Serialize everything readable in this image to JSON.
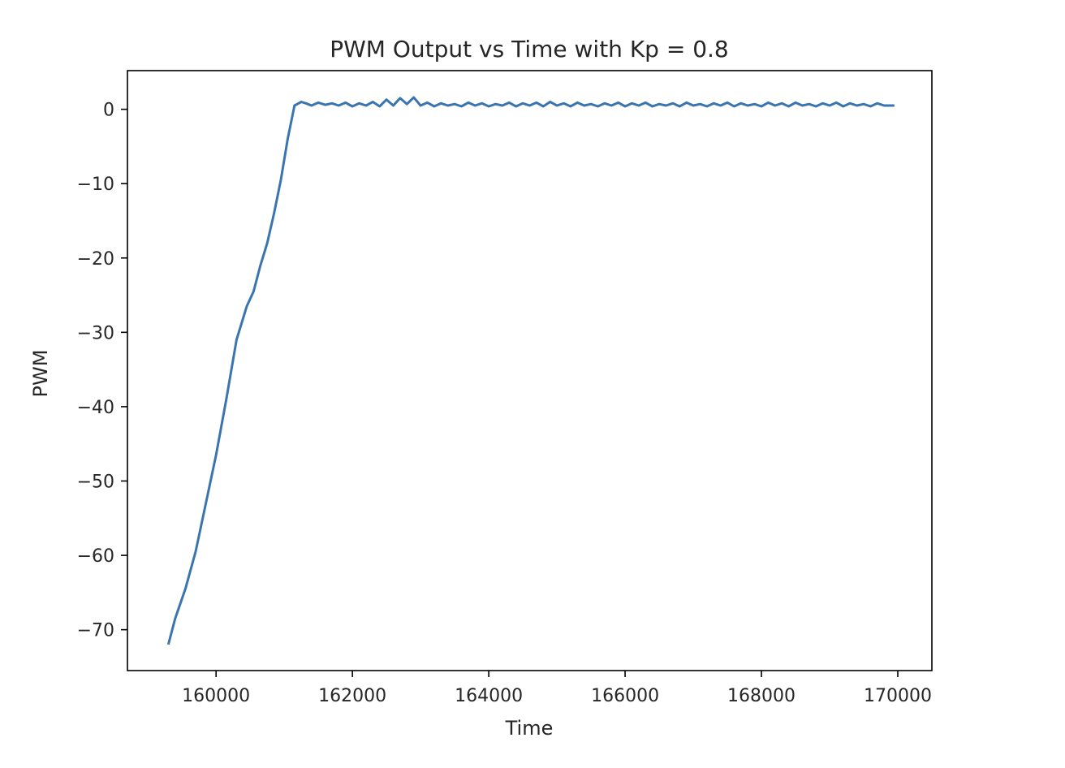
{
  "chart_data": {
    "type": "line",
    "title": "PWM Output vs Time with Kp = 0.8",
    "xlabel": "Time",
    "ylabel": "PWM",
    "xlim": [
      158700,
      170500
    ],
    "ylim": [
      -75.5,
      5.2
    ],
    "x_ticks": [
      160000,
      162000,
      164000,
      166000,
      168000,
      170000
    ],
    "y_ticks": [
      0,
      -10,
      -20,
      -30,
      -40,
      -50,
      -60,
      -70
    ],
    "x_tick_labels": [
      "160000",
      "162000",
      "164000",
      "166000",
      "168000",
      "170000"
    ],
    "y_tick_labels": [
      "0",
      "−10",
      "−20",
      "−30",
      "−40",
      "−50",
      "−60",
      "−70"
    ],
    "grid": false,
    "legend": "none",
    "series": [
      {
        "color": "#3a75b0",
        "x": [
          159300,
          159400,
          159550,
          159700,
          159850,
          160000,
          160150,
          160300,
          160450,
          160550,
          160650,
          160750,
          160850,
          160950,
          161050,
          161150,
          161250,
          161320,
          161400,
          161500,
          161600,
          161700,
          161800,
          161900,
          162000,
          162100,
          162200,
          162300,
          162400,
          162500,
          162600,
          162700,
          162800,
          162900,
          163000,
          163100,
          163200,
          163300,
          163400,
          163500,
          163600,
          163700,
          163800,
          163900,
          164000,
          164100,
          164200,
          164300,
          164400,
          164500,
          164600,
          164700,
          164800,
          164900,
          165000,
          165100,
          165200,
          165300,
          165400,
          165500,
          165600,
          165700,
          165800,
          165900,
          166000,
          166100,
          166200,
          166300,
          166400,
          166500,
          166600,
          166700,
          166800,
          166900,
          167000,
          167100,
          167200,
          167300,
          167400,
          167500,
          167600,
          167700,
          167800,
          167900,
          168000,
          168100,
          168200,
          168300,
          168400,
          168500,
          168600,
          168700,
          168800,
          168900,
          169000,
          169100,
          169200,
          169300,
          169400,
          169500,
          169600,
          169700,
          169800,
          169950
        ],
        "y": [
          -72,
          -68.5,
          -64.5,
          -59.5,
          -53,
          -46.5,
          -39,
          -31,
          -26.5,
          -24.5,
          -21,
          -18,
          -14,
          -9.5,
          -4,
          0.5,
          1.0,
          0.8,
          0.5,
          0.9,
          0.6,
          0.8,
          0.5,
          0.9,
          0.4,
          0.8,
          0.5,
          1.0,
          0.4,
          1.3,
          0.5,
          1.5,
          0.7,
          1.6,
          0.5,
          0.9,
          0.4,
          0.8,
          0.5,
          0.7,
          0.4,
          0.9,
          0.5,
          0.8,
          0.4,
          0.7,
          0.5,
          0.9,
          0.4,
          0.8,
          0.5,
          0.9,
          0.4,
          1.0,
          0.5,
          0.8,
          0.4,
          0.9,
          0.5,
          0.7,
          0.4,
          0.8,
          0.5,
          0.9,
          0.4,
          0.8,
          0.5,
          0.9,
          0.4,
          0.7,
          0.5,
          0.8,
          0.4,
          0.9,
          0.5,
          0.7,
          0.4,
          0.8,
          0.5,
          0.9,
          0.4,
          0.8,
          0.5,
          0.7,
          0.4,
          0.9,
          0.5,
          0.8,
          0.4,
          0.9,
          0.5,
          0.7,
          0.4,
          0.8,
          0.5,
          0.9,
          0.4,
          0.8,
          0.5,
          0.7,
          0.4,
          0.8,
          0.5,
          0.5
        ]
      }
    ]
  }
}
